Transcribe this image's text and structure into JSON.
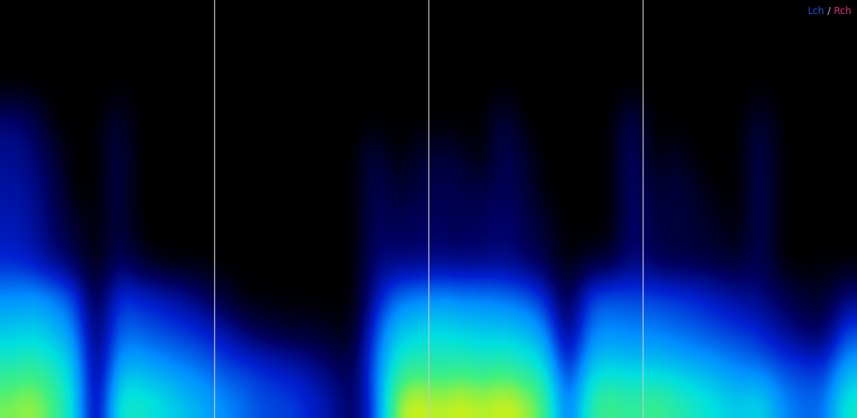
{
  "chart_data": {
    "type": "heatmap",
    "cells": [
      [
        0,
        0,
        0,
        0,
        0,
        0,
        0,
        0,
        0,
        0,
        0,
        0,
        0,
        0,
        0,
        0,
        0,
        0,
        0,
        0,
        0,
        0,
        0,
        0,
        0,
        0,
        0,
        0,
        0,
        0,
        0,
        0,
        0,
        0,
        0,
        0,
        0,
        0,
        0,
        0
      ],
      [
        0,
        0,
        0,
        0,
        0,
        0,
        0,
        0,
        0,
        0,
        0,
        0,
        0,
        0,
        0,
        0,
        0,
        0,
        0,
        0,
        0,
        0,
        0,
        0,
        0,
        0,
        0,
        0,
        0,
        0,
        0,
        0,
        0,
        0,
        0,
        0,
        0,
        0,
        0,
        0
      ],
      [
        0,
        0,
        0,
        0,
        0,
        0,
        0,
        0,
        0,
        0,
        0,
        0,
        0,
        0,
        0,
        0,
        0,
        0,
        0,
        0,
        0,
        0,
        0,
        0,
        0,
        0,
        0,
        0,
        0,
        0,
        0,
        0,
        0,
        0,
        0,
        0,
        0,
        0,
        0,
        0
      ],
      [
        0.15,
        0.12,
        0,
        0,
        0,
        0.08,
        0,
        0,
        0,
        0,
        0,
        0,
        0,
        0,
        0,
        0,
        0,
        0,
        0,
        0,
        0,
        0,
        0,
        0.1,
        0,
        0,
        0,
        0,
        0,
        0.12,
        0,
        0,
        0,
        0,
        0,
        0.08,
        0,
        0,
        0,
        0
      ],
      [
        0.18,
        0.15,
        0.08,
        0,
        0,
        0.1,
        0,
        0,
        0,
        0,
        0,
        0,
        0,
        0,
        0,
        0,
        0,
        0.1,
        0,
        0.06,
        0.08,
        0.06,
        0,
        0.12,
        0.06,
        0,
        0,
        0,
        0,
        0.15,
        0,
        0.06,
        0,
        0,
        0,
        0.12,
        0,
        0,
        0,
        0
      ],
      [
        0.2,
        0.18,
        0.1,
        0,
        0,
        0.1,
        0,
        0,
        0,
        0,
        0,
        0,
        0,
        0,
        0,
        0,
        0,
        0.12,
        0.06,
        0.08,
        0.1,
        0.1,
        0.08,
        0.12,
        0.08,
        0,
        0,
        0,
        0,
        0.15,
        0.06,
        0.08,
        0.06,
        0,
        0,
        0.12,
        0,
        0,
        0,
        0
      ],
      [
        0.22,
        0.2,
        0.12,
        0.06,
        0,
        0.1,
        0,
        0,
        0,
        0,
        0,
        0,
        0,
        0,
        0,
        0,
        0,
        0.12,
        0.1,
        0.12,
        0.12,
        0.1,
        0.12,
        0.14,
        0.1,
        0.06,
        0,
        0,
        0,
        0.15,
        0.08,
        0.08,
        0.06,
        0.05,
        0,
        0.12,
        0,
        0,
        0,
        0
      ],
      [
        0.25,
        0.22,
        0.15,
        0.1,
        0,
        0.12,
        0.05,
        0,
        0,
        0,
        0,
        0,
        0,
        0,
        0,
        0,
        0,
        0.15,
        0.14,
        0.14,
        0.15,
        0.14,
        0.14,
        0.16,
        0.12,
        0.08,
        0,
        0.05,
        0.06,
        0.16,
        0.1,
        0.08,
        0.08,
        0.06,
        0.05,
        0.12,
        0,
        0,
        0,
        0
      ],
      [
        0.4,
        0.42,
        0.38,
        0.3,
        0.05,
        0.28,
        0.25,
        0.22,
        0.18,
        0.12,
        0.05,
        0,
        0,
        0,
        0,
        0,
        0,
        0.2,
        0.35,
        0.38,
        0.4,
        0.38,
        0.38,
        0.36,
        0.33,
        0.25,
        0.05,
        0.3,
        0.32,
        0.3,
        0.3,
        0.28,
        0.26,
        0.22,
        0.18,
        0.15,
        0.1,
        0.06,
        0.05,
        0.15
      ],
      [
        0.5,
        0.52,
        0.48,
        0.4,
        0.08,
        0.35,
        0.33,
        0.3,
        0.28,
        0.25,
        0.2,
        0.12,
        0.08,
        0.05,
        0.05,
        0.03,
        0.02,
        0.3,
        0.5,
        0.52,
        0.55,
        0.52,
        0.5,
        0.5,
        0.48,
        0.4,
        0.1,
        0.38,
        0.4,
        0.38,
        0.38,
        0.35,
        0.33,
        0.3,
        0.28,
        0.25,
        0.18,
        0.12,
        0.1,
        0.3
      ],
      [
        0.62,
        0.65,
        0.6,
        0.5,
        0.1,
        0.45,
        0.45,
        0.42,
        0.38,
        0.35,
        0.3,
        0.28,
        0.25,
        0.22,
        0.18,
        0.12,
        0.08,
        0.35,
        0.6,
        0.65,
        0.62,
        0.65,
        0.62,
        0.65,
        0.6,
        0.55,
        0.2,
        0.5,
        0.52,
        0.5,
        0.5,
        0.48,
        0.45,
        0.42,
        0.38,
        0.35,
        0.3,
        0.28,
        0.25,
        0.45
      ],
      [
        0.75,
        0.8,
        0.7,
        0.55,
        0.1,
        0.6,
        0.6,
        0.55,
        0.5,
        0.45,
        0.4,
        0.35,
        0.3,
        0.3,
        0.25,
        0.2,
        0.1,
        0.3,
        0.8,
        0.85,
        0.8,
        0.85,
        0.8,
        0.85,
        0.8,
        0.7,
        0.3,
        0.65,
        0.7,
        0.65,
        0.7,
        0.65,
        0.6,
        0.55,
        0.5,
        0.55,
        0.4,
        0.35,
        0.35,
        0.6
      ]
    ],
    "color_range": [
      0,
      1
    ],
    "time_markers": [
      10,
      20,
      30
    ],
    "channels": [
      {
        "name": "Lch",
        "color": "#2050e0"
      },
      {
        "name": "Rch",
        "color": "#e0307a"
      }
    ],
    "channel_separator": "/",
    "tick_labels": false,
    "grid": false
  }
}
